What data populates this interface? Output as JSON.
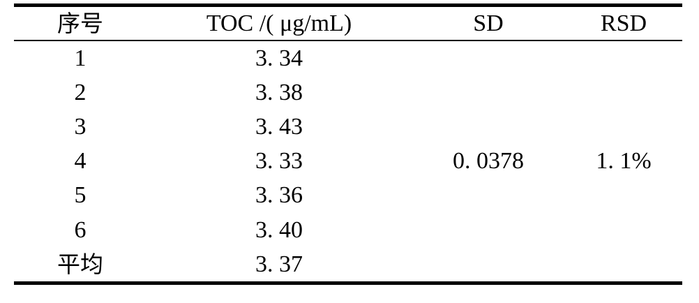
{
  "table": {
    "headers": {
      "no": "序号",
      "toc": "TOC /( μg/mL)",
      "sd": "SD",
      "rsd": "RSD"
    },
    "rows": [
      {
        "no": "1",
        "toc": "3. 34",
        "sd": "",
        "rsd": ""
      },
      {
        "no": "2",
        "toc": "3. 38",
        "sd": "",
        "rsd": ""
      },
      {
        "no": "3",
        "toc": "3. 43",
        "sd": "",
        "rsd": ""
      },
      {
        "no": "4",
        "toc": "3. 33",
        "sd": "0. 0378",
        "rsd": "1. 1%"
      },
      {
        "no": "5",
        "toc": "3. 36",
        "sd": "",
        "rsd": ""
      },
      {
        "no": "6",
        "toc": "3. 40",
        "sd": "",
        "rsd": ""
      },
      {
        "no": "平均",
        "toc": "3. 37",
        "sd": "",
        "rsd": ""
      }
    ]
  },
  "chart_data": {
    "type": "table",
    "columns": [
      "序号",
      "TOC /( μg/mL)",
      "SD",
      "RSD"
    ],
    "rows": [
      [
        "1",
        3.34,
        null,
        null
      ],
      [
        "2",
        3.38,
        null,
        null
      ],
      [
        "3",
        3.43,
        null,
        null
      ],
      [
        "4",
        3.33,
        0.0378,
        "1.1%"
      ],
      [
        "5",
        3.36,
        null,
        null
      ],
      [
        "6",
        3.4,
        null,
        null
      ],
      [
        "平均",
        3.37,
        null,
        null
      ]
    ]
  },
  "colors": {
    "background": "#ffffff",
    "text": "#000000",
    "rule": "#000000"
  }
}
